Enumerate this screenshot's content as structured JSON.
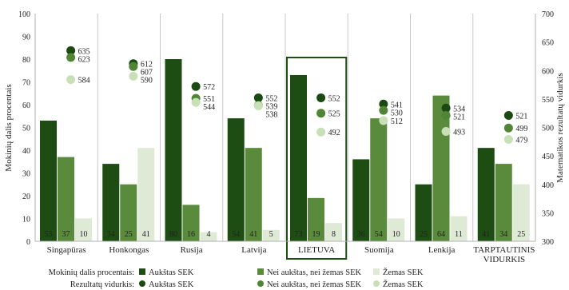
{
  "chart_data": {
    "type": "bar",
    "ylabel": "Mokinių dalis procentais",
    "y2label": "Matematikos rezultatų vidurkis",
    "ylim": [
      0,
      100
    ],
    "yticks": [
      "0",
      "10",
      "20",
      "30",
      "40",
      "50",
      "60",
      "70",
      "80",
      "90",
      "100"
    ],
    "y2lim": [
      300,
      700
    ],
    "y2ticks": [
      "300",
      "350",
      "400",
      "450",
      "500",
      "550",
      "600",
      "650",
      "700"
    ],
    "categories": [
      "Singapūras",
      "Honkongas",
      "Rusija",
      "Latvija",
      "LIETUVA",
      "Suomija",
      "Lenkija",
      "TARPTAUTINIS VIDURKIS"
    ],
    "category_lines": [
      [
        "Singapūras"
      ],
      [
        "Honkongas"
      ],
      [
        "Rusija"
      ],
      [
        "Latvija"
      ],
      [
        "LIETUVA"
      ],
      [
        "Suomija"
      ],
      [
        "Lenkija"
      ],
      [
        "TARPTAUTINIS",
        "VIDURKIS"
      ]
    ],
    "highlighted_category": "LIETUVA",
    "bar_series": [
      {
        "name": "Aukštas SEK",
        "color": "#1e4d14",
        "values": [
          53,
          34,
          80,
          54,
          73,
          36,
          25,
          41
        ]
      },
      {
        "name": "Nei aukštas, nei žemas SEK",
        "color": "#5a8a3c",
        "values": [
          37,
          25,
          16,
          41,
          19,
          54,
          64,
          34
        ]
      },
      {
        "name": "Žemas SEK",
        "color": "#dfead6",
        "values": [
          10,
          41,
          4,
          5,
          8,
          10,
          11,
          25
        ]
      }
    ],
    "point_series": [
      {
        "name": "Aukštas SEK",
        "color": "#1a4a12",
        "values": [
          635,
          612,
          572,
          552,
          552,
          541,
          534,
          521
        ]
      },
      {
        "name": "Nei aukštas, nei žemas SEK",
        "color": "#4f8534",
        "values": [
          623,
          607,
          551,
          539,
          525,
          530,
          521,
          499
        ]
      },
      {
        "name": "Žemas SEK",
        "color": "#c8e0b7",
        "values": [
          584,
          590,
          544,
          538,
          492,
          512,
          493,
          479
        ]
      }
    ],
    "legend": {
      "position": "bottom",
      "bar_title": "Mokinių dalis procentais:",
      "point_title": "Rezultatų vidurkis:"
    }
  }
}
